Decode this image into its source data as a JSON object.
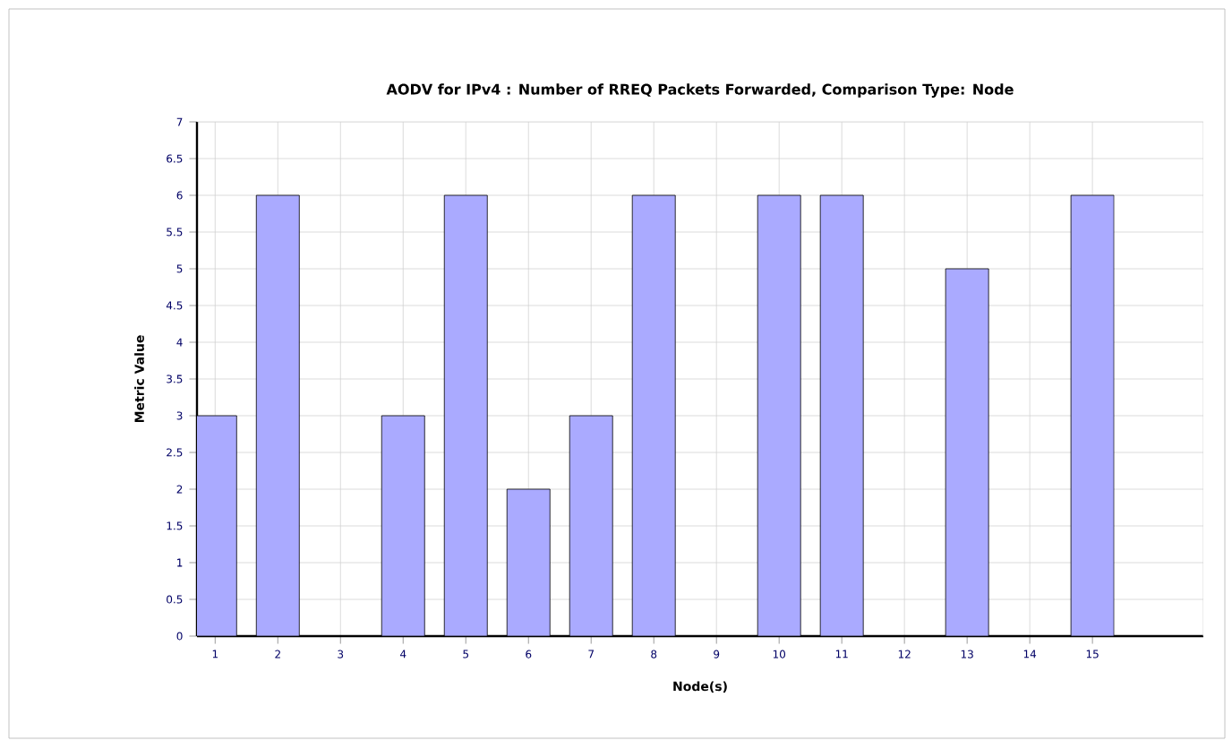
{
  "chart_data": {
    "type": "bar",
    "title": "AODV for IPv4 :  Number of RREQ Packets Forwarded, Comparison Type: Node",
    "xlabel": "Node(s)",
    "ylabel": "Metric Value",
    "categories": [
      "1",
      "2",
      "3",
      "4",
      "5",
      "6",
      "7",
      "8",
      "9",
      "10",
      "11",
      "12",
      "13",
      "14",
      "15"
    ],
    "values": [
      3,
      6,
      null,
      3,
      6,
      2,
      3,
      6,
      null,
      6,
      6,
      null,
      5,
      null,
      6
    ],
    "color": "#aaaaff",
    "ylim": [
      0,
      7
    ],
    "yticks": [
      0,
      0.5,
      1,
      1.5,
      2,
      2.5,
      3,
      3.5,
      4,
      4.5,
      5,
      5.5,
      6,
      6.5,
      7
    ],
    "grid": true
  }
}
